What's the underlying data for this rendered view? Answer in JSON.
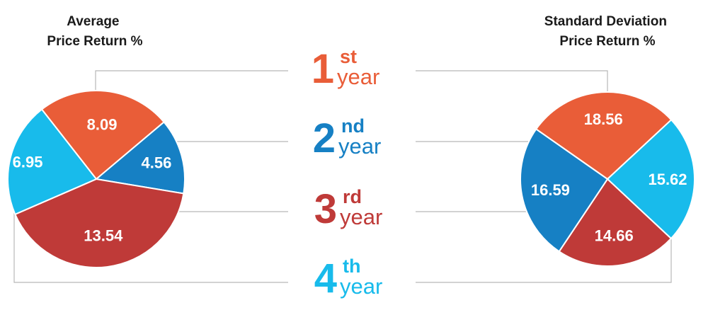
{
  "chart_data": [
    {
      "type": "pie",
      "title": "Average\nPrice Return %",
      "slices": [
        {
          "label": "1st year",
          "value": 8.09,
          "display": "8.09",
          "color": "#e95d38"
        },
        {
          "label": "2nd year",
          "value": 4.56,
          "display": "4.56",
          "color": "#1680c4"
        },
        {
          "label": "3rd year",
          "value": 13.54,
          "display": "13.54",
          "color": "#bf3a38"
        },
        {
          "label": "4th year",
          "value": 6.95,
          "display": "6.95",
          "color": "#18bbeb"
        }
      ]
    },
    {
      "type": "pie",
      "title": "Standard Deviation\nPrice Return %",
      "slices": [
        {
          "label": "1st year",
          "value": 18.56,
          "display": "18.56",
          "color": "#e95d38"
        },
        {
          "label": "4th year",
          "value": 15.62,
          "display": "15.62",
          "color": "#18bbeb"
        },
        {
          "label": "3rd year",
          "value": 14.66,
          "display": "14.66",
          "color": "#bf3a38"
        },
        {
          "label": "2nd year",
          "value": 16.59,
          "display": "16.59",
          "color": "#1680c4"
        }
      ]
    }
  ],
  "legend": [
    {
      "number": "1",
      "suffix": "st",
      "word": "year",
      "color": "#e95d38"
    },
    {
      "number": "2",
      "suffix": "nd",
      "word": "year",
      "color": "#1680c4"
    },
    {
      "number": "3",
      "suffix": "rd",
      "word": "year",
      "color": "#bf3a38"
    },
    {
      "number": "4",
      "suffix": "th",
      "word": "year",
      "color": "#18bbeb"
    }
  ]
}
